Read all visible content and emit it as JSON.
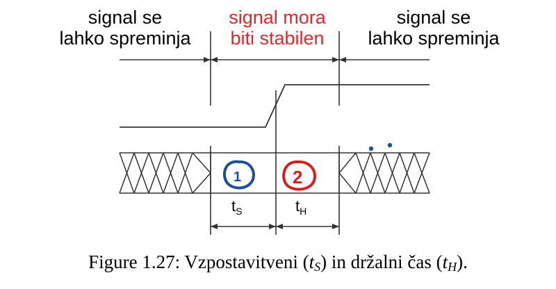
{
  "header": {
    "left": {
      "line1": "signal se",
      "line2": "lahko spreminja"
    },
    "middle": {
      "line1": "signal mora",
      "line2": "biti stabilen"
    },
    "right": {
      "line1": "signal se",
      "line2": "lahko spreminja"
    }
  },
  "diagram": {
    "setup_label": "t",
    "setup_sub": "S",
    "hold_label": "t",
    "hold_sub": "H",
    "annotation_1": "1",
    "annotation_2": "2"
  },
  "caption": {
    "prefix": "Figure 1.27: Vzpostavitveni (",
    "t_setup": "t",
    "t_setup_sub": "S",
    "middle": ") in držalni čas (",
    "t_hold": "t",
    "t_hold_sub": "H",
    "suffix": ")."
  },
  "colors": {
    "line": "#333333",
    "header_red": "#e3262c",
    "annotation_blue": "#1f4e9c",
    "annotation_red": "#d42020"
  }
}
